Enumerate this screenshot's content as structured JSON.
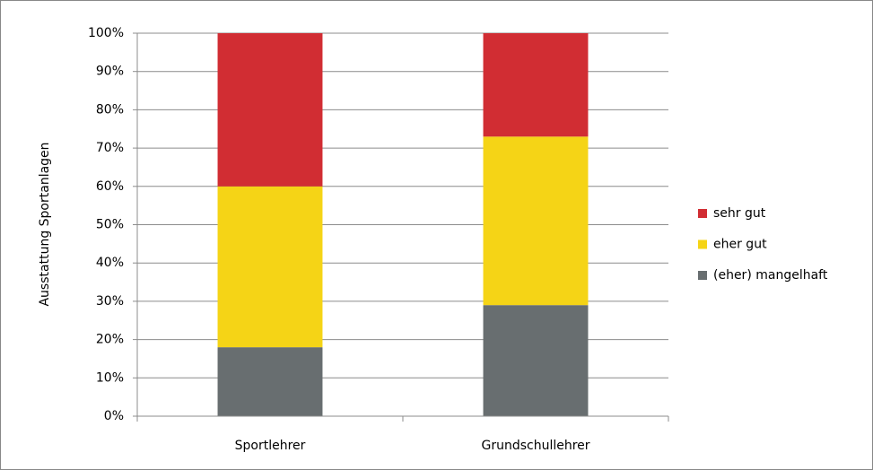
{
  "chart_data": {
    "type": "stacked_bar",
    "y_label": "Ausstattung Sportanlagen",
    "categories": [
      "Sportlehrer",
      "Grundschullehrer"
    ],
    "series": [
      {
        "name": "(eher) mangelhaft",
        "color": "#686e70",
        "values": [
          18,
          29
        ]
      },
      {
        "name": "eher gut",
        "color": "#f5d416",
        "values": [
          42,
          44
        ]
      },
      {
        "name": "sehr gut",
        "color": "#d12d33",
        "values": [
          40,
          27
        ]
      }
    ],
    "ylim": [
      0,
      100
    ],
    "yticks": [
      {
        "value": 0,
        "label": "0%"
      },
      {
        "value": 10,
        "label": "10%"
      },
      {
        "value": 20,
        "label": "20%"
      },
      {
        "value": 30,
        "label": "30%"
      },
      {
        "value": 40,
        "label": "40%"
      },
      {
        "value": 50,
        "label": "50%"
      },
      {
        "value": 60,
        "label": "60%"
      },
      {
        "value": 70,
        "label": "70%"
      },
      {
        "value": 80,
        "label": "80%"
      },
      {
        "value": 90,
        "label": "90%"
      },
      {
        "value": 100,
        "label": "100%"
      }
    ],
    "grid": true,
    "legend": "right"
  }
}
